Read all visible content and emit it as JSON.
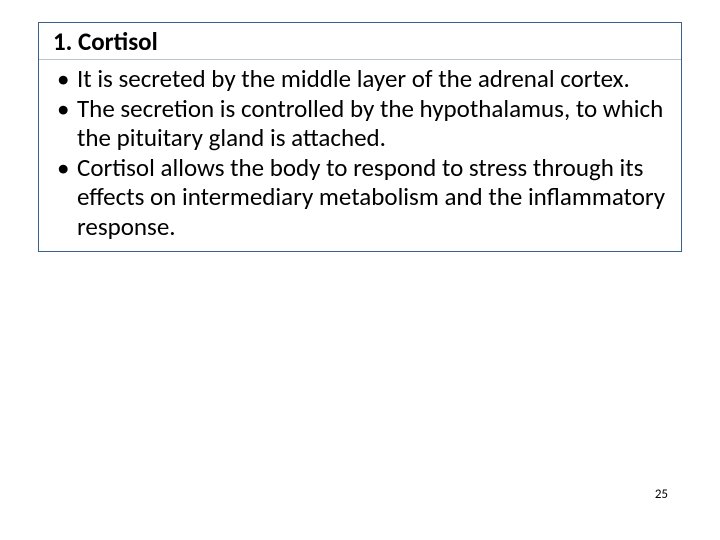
{
  "slide": {
    "title": "1. Cortisol",
    "bullets": [
      "It is secreted by the middle layer of the adrenal cortex.",
      " The secretion is controlled by the hypothalamus, to which the pituitary gland is attached.",
      "Cortisol allows the body to respond to stress through its effects on intermediary metabolism and the inflammatory response."
    ],
    "page_number": "25"
  },
  "style": {
    "background_color": "#ffffff",
    "border_color": "#3a5f8a",
    "title_separator_color": "#b8c4d4",
    "text_color": "#000000",
    "title_fontsize": 25,
    "title_fontweight": "bold",
    "body_fontsize": 25,
    "pagenum_fontsize": 13,
    "font_family": "Calibri"
  }
}
